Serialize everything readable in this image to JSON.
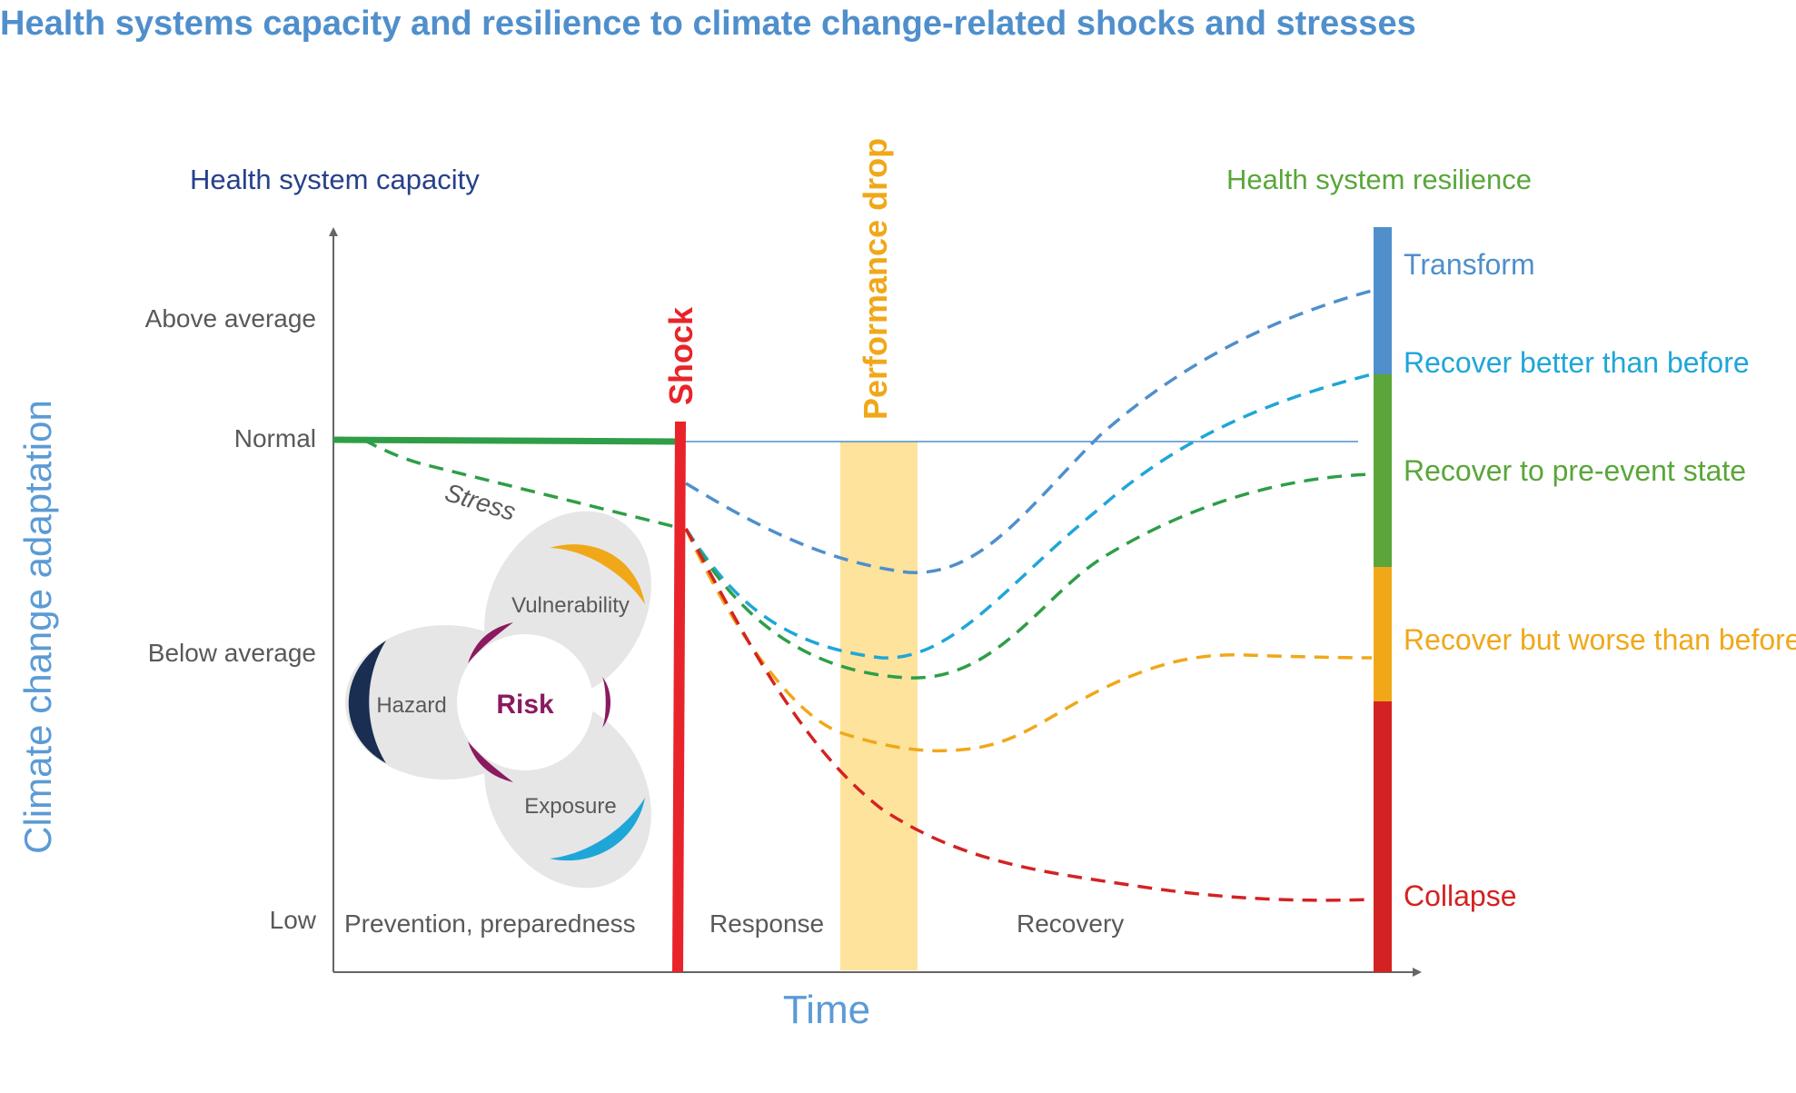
{
  "title": "Health systems capacity and resilience to climate change-related shocks and stresses",
  "capacity_label": "Health system capacity",
  "resilience_label": "Health system resilience",
  "y_axis_label": "Climate change adaptation",
  "x_axis_label": "Time",
  "y_levels": [
    "Above average",
    "Normal",
    "Below average",
    "Low"
  ],
  "phases": [
    "Prevention, preparedness",
    "Response",
    "Recovery"
  ],
  "shock_label": "Shock",
  "performance_drop_label": "Performance drop",
  "stress_label": "Stress",
  "risk_diagram": {
    "center": "Risk",
    "hazard": "Hazard",
    "vulnerability": "Vulnerability",
    "exposure": "Exposure"
  },
  "outcomes": [
    {
      "label": "Transform",
      "color": "#4f8fcc"
    },
    {
      "label": "Recover better than before",
      "color": "#1fa6d8"
    },
    {
      "label": "Recover to pre-event state",
      "color": "#5aa63a"
    },
    {
      "label": "Recover but worse than before",
      "color": "#f0a819"
    },
    {
      "label": "Collapse",
      "color": "#d42222"
    }
  ],
  "colors": {
    "title": "#4f8fcc",
    "capacity_label": "#27408b",
    "resilience_label": "#5aa63a",
    "axis_label": "#5b9bd5",
    "axis": "#666666",
    "tick_text": "#595959",
    "normal_line": "#2e9e48",
    "shock": "#e8242a",
    "performance_drop_band": "#fde39c",
    "performance_drop_text": "#f0a819",
    "risk_text": "#8b1a5f",
    "hazard_arc": "#1a2e52",
    "vulnerability_arc": "#f0a819",
    "exposure_arc": "#1fa6d8",
    "risk_arcs": "#8b1a5f",
    "petal_fill": "#e6e6e6"
  }
}
